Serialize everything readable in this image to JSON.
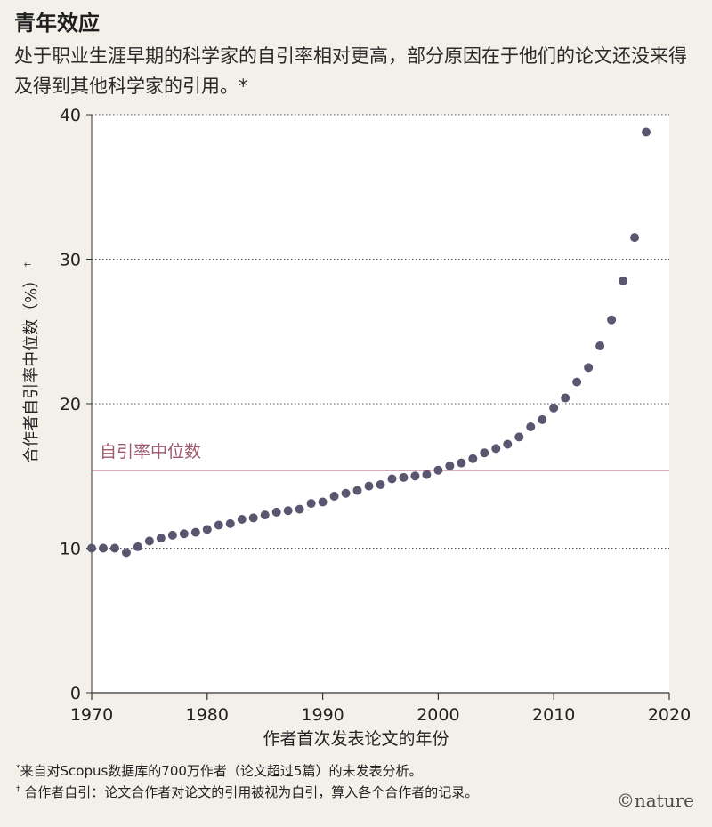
{
  "header": {
    "title": "青年效应",
    "subtitle": "处于职业生涯早期的科学家的自引率相对更高，部分原因在于他们的论文还没来得及得到其他科学家的引用。*"
  },
  "footnotes": {
    "note1_mark": "*",
    "note1": "来自对Scopus数据库的700万作者（论文超过5篇）的未发表分析。",
    "note2_mark": "†",
    "note2": "合作者自引：论文合作者对论文的引用被视为自引，算入各个合作者的记录。"
  },
  "logo": "©nature",
  "chart_data": {
    "type": "scatter",
    "xlabel": "作者首次发表论文的年份",
    "ylabel": "合作者自引率中位数（%）",
    "ylabel_mark": "†",
    "xlim": [
      1970,
      2020
    ],
    "ylim": [
      0,
      40
    ],
    "xticks": [
      1970,
      1980,
      1990,
      2000,
      2010,
      2020
    ],
    "yticks": [
      0,
      10,
      20,
      30,
      40
    ],
    "grid": "horizontal dotted",
    "reference_line": {
      "label": "自引率中位数",
      "value": 15.4,
      "color": "#a05a6e"
    },
    "point_color": "#5a5670",
    "x": [
      1970,
      1971,
      1972,
      1973,
      1974,
      1975,
      1976,
      1977,
      1978,
      1979,
      1980,
      1981,
      1982,
      1983,
      1984,
      1985,
      1986,
      1987,
      1988,
      1989,
      1990,
      1991,
      1992,
      1993,
      1994,
      1995,
      1996,
      1997,
      1998,
      1999,
      2000,
      2001,
      2002,
      2003,
      2004,
      2005,
      2006,
      2007,
      2008,
      2009,
      2010,
      2011,
      2012,
      2013,
      2014,
      2015,
      2016,
      2017,
      2018
    ],
    "y": [
      10.0,
      10.0,
      10.0,
      9.7,
      10.1,
      10.5,
      10.7,
      10.9,
      11.0,
      11.1,
      11.3,
      11.6,
      11.7,
      12.0,
      12.1,
      12.3,
      12.5,
      12.6,
      12.7,
      13.1,
      13.2,
      13.6,
      13.8,
      14.0,
      14.3,
      14.4,
      14.8,
      14.9,
      15.0,
      15.1,
      15.4,
      15.7,
      15.9,
      16.2,
      16.6,
      16.9,
      17.2,
      17.7,
      18.4,
      18.9,
      19.7,
      20.4,
      21.5,
      22.5,
      24.0,
      25.8,
      28.5,
      31.5,
      38.8
    ]
  }
}
